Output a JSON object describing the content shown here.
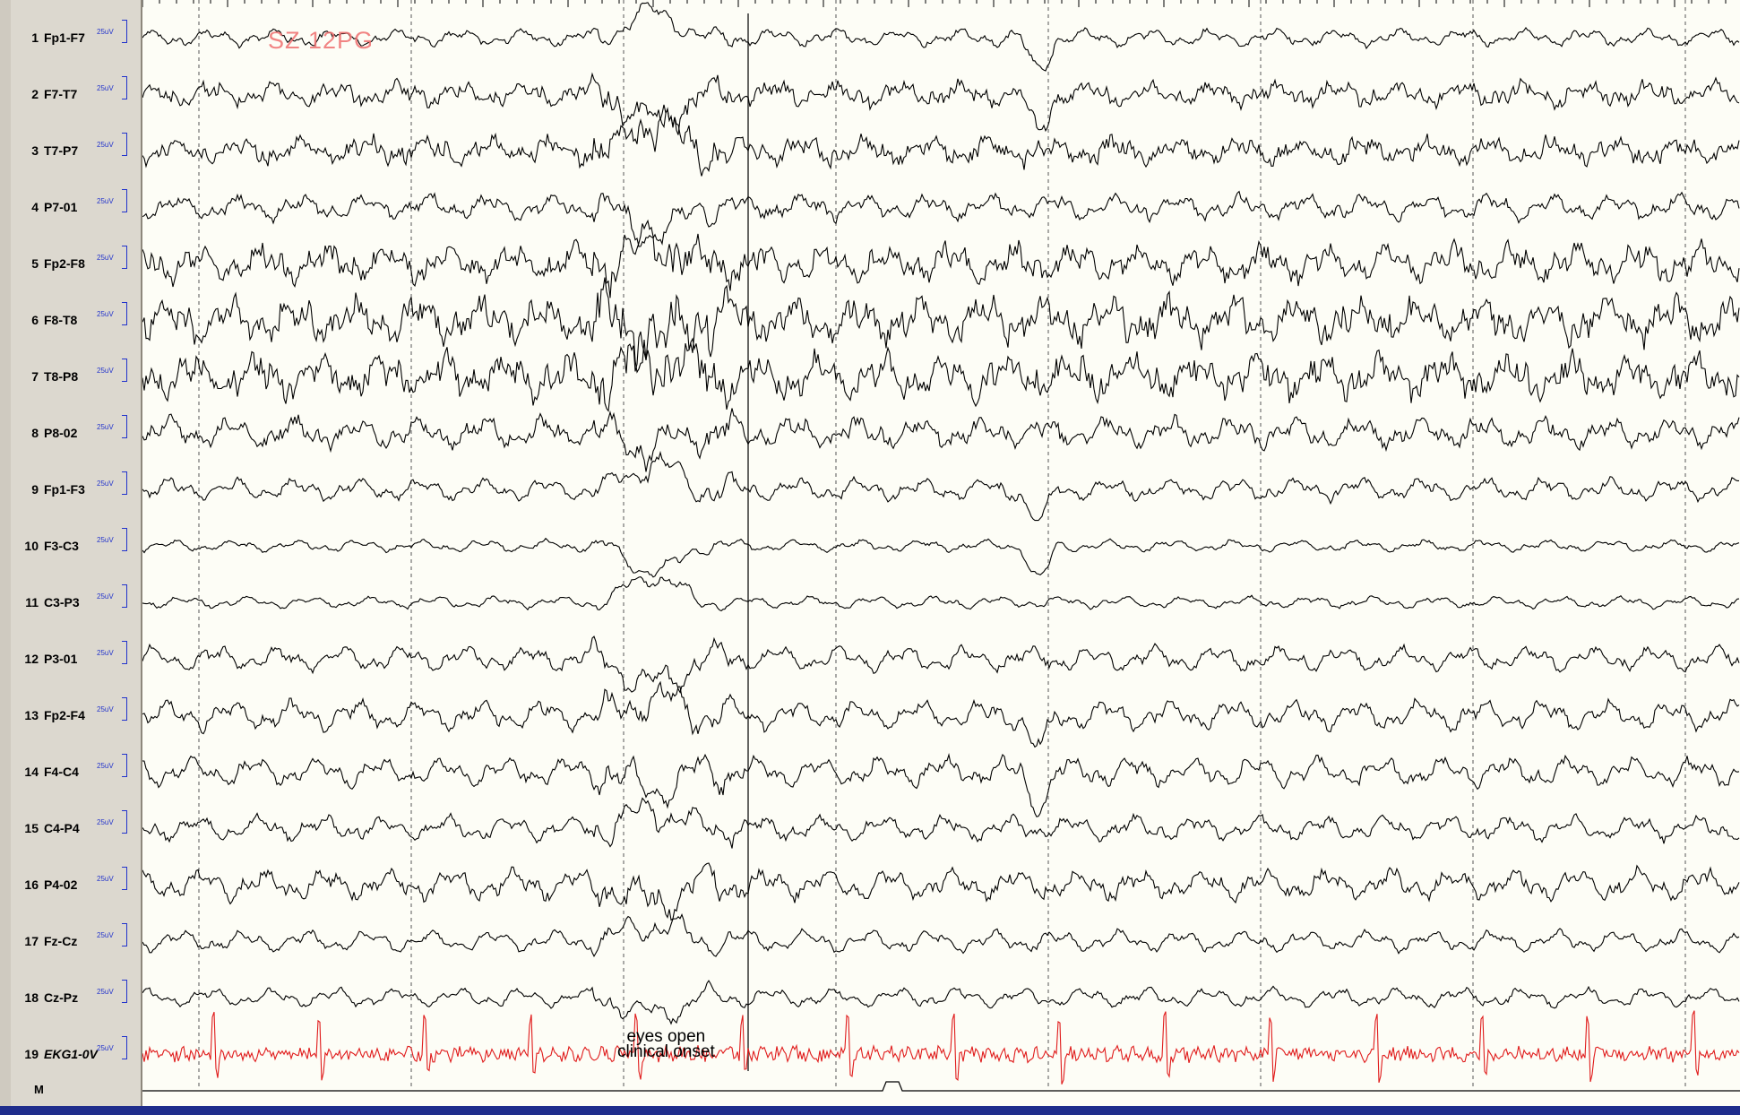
{
  "overlay": {
    "seizure_tag": "SZ 12PG"
  },
  "annotation": {
    "line1": "eyes open",
    "line2": "clinical onset"
  },
  "marker_channel": {
    "label": "M"
  },
  "colors": {
    "eeg_trace": "#000000",
    "ekg_trace": "#e01b1b",
    "scale_text": "#2233cc",
    "tag": "#f07070",
    "bottom_bar": "#1f2d8c"
  },
  "channels": [
    {
      "num": "1",
      "name": "Fp1-F7",
      "scale": "25uV"
    },
    {
      "num": "2",
      "name": "F7-T7",
      "scale": "25uV"
    },
    {
      "num": "3",
      "name": "T7-P7",
      "scale": "25uV"
    },
    {
      "num": "4",
      "name": "P7-01",
      "scale": "25uV"
    },
    {
      "num": "5",
      "name": "Fp2-F8",
      "scale": "25uV"
    },
    {
      "num": "6",
      "name": "F8-T8",
      "scale": "25uV"
    },
    {
      "num": "7",
      "name": "T8-P8",
      "scale": "25uV"
    },
    {
      "num": "8",
      "name": "P8-02",
      "scale": "25uV"
    },
    {
      "num": "9",
      "name": "Fp1-F3",
      "scale": "25uV"
    },
    {
      "num": "10",
      "name": "F3-C3",
      "scale": "25uV"
    },
    {
      "num": "11",
      "name": "C3-P3",
      "scale": "25uV"
    },
    {
      "num": "12",
      "name": "P3-01",
      "scale": "25uV"
    },
    {
      "num": "13",
      "name": "Fp2-F4",
      "scale": "25uV"
    },
    {
      "num": "14",
      "name": "F4-C4",
      "scale": "25uV"
    },
    {
      "num": "15",
      "name": "C4-P4",
      "scale": "25uV"
    },
    {
      "num": "16",
      "name": "P4-02",
      "scale": "25uV"
    },
    {
      "num": "17",
      "name": "Fz-Cz",
      "scale": "25uV"
    },
    {
      "num": "18",
      "name": "Cz-Pz",
      "scale": "25uV"
    },
    {
      "num": "19",
      "name": "EKG1-0V",
      "scale": "25uV"
    }
  ]
}
